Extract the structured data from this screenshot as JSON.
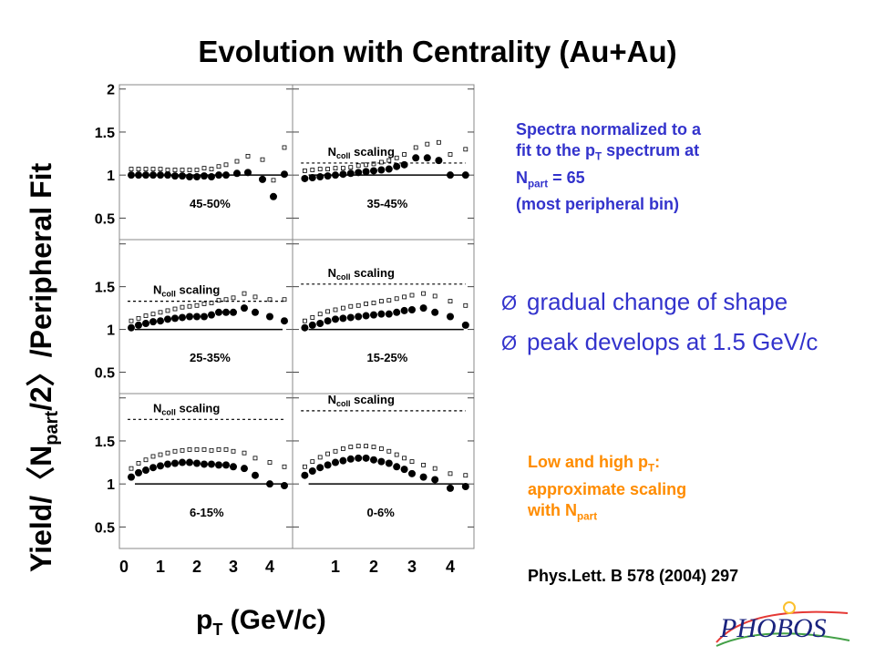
{
  "slide": {
    "title": "Evolution with Centrality (Au+Au)",
    "note_blue": {
      "line1": "Spectra normalized to a",
      "line2_pre": "fit to the p",
      "line2_sub": "T",
      "line2_post": " spectrum at",
      "line3_pre": "N",
      "line3_sub": "part",
      "line3_post": " = 65",
      "line4": "(most peripheral bin)"
    },
    "bullets": [
      "gradual change of shape",
      "peak develops at 1.5 GeV/c"
    ],
    "bullet_mark": "Ø",
    "note_orange": {
      "line1_pre": "Low and high p",
      "line1_sub": "T",
      "line1_post": ":",
      "line2": "approximate scaling",
      "line3_pre": "with N",
      "line3_sub": "part"
    },
    "reference": "Phys.Lett. B 578 (2004) 297",
    "logo_text": "PHOBOS",
    "colors": {
      "blue_text": "#3333cc",
      "orange_text": "#ff8c00",
      "markers": "#000000",
      "logo": "#1a237e"
    }
  },
  "chart_data": {
    "type": "scatter",
    "layout": "3x2 panel grid",
    "ylabel": {
      "pre": "Yield/",
      "lbracket": "〈",
      "N": "N",
      "sub": "part",
      "post_a": "/2",
      "rbracket": "〉",
      "post_b": "/Peripheral Fit"
    },
    "xlabel": {
      "main": "p",
      "sub": "T",
      "rest": " (GeV/c)"
    },
    "xlim": [
      0,
      4.5
    ],
    "ylim": [
      0.25,
      2.05
    ],
    "left_col_yticks": [
      {
        "v": 0.5,
        "label": "0.5"
      },
      {
        "v": 1,
        "label": "1"
      },
      {
        "v": 1.5,
        "label": "1.5"
      },
      {
        "v": 2,
        "label": "2"
      }
    ],
    "mid_row_yticks": [
      {
        "v": 0.5,
        "label": "0.5"
      },
      {
        "v": 1,
        "label": "1"
      },
      {
        "v": 1.5,
        "label": "1.5"
      }
    ],
    "left_xticks": [
      {
        "v": 0,
        "label": "0"
      },
      {
        "v": 1,
        "label": "1"
      },
      {
        "v": 2,
        "label": "2"
      },
      {
        "v": 3,
        "label": "3"
      },
      {
        "v": 4,
        "label": "4"
      }
    ],
    "right_xticks": [
      {
        "v": 1,
        "label": "1"
      },
      {
        "v": 2,
        "label": "2"
      },
      {
        "v": 3,
        "label": "3"
      },
      {
        "v": 4,
        "label": "4"
      }
    ],
    "ncoll_label": {
      "N": "N",
      "sub": "coll",
      "rest": " scaling"
    },
    "panels": [
      {
        "label": "45-50%",
        "ncoll": null,
        "series": [
          {
            "x": 0.2,
            "y": 1.0
          },
          {
            "x": 0.4,
            "y": 1.0
          },
          {
            "x": 0.6,
            "y": 1.0
          },
          {
            "x": 0.8,
            "y": 1.0
          },
          {
            "x": 1.0,
            "y": 1.0
          },
          {
            "x": 1.2,
            "y": 1.0
          },
          {
            "x": 1.4,
            "y": 0.99
          },
          {
            "x": 1.6,
            "y": 0.99
          },
          {
            "x": 1.8,
            "y": 0.98
          },
          {
            "x": 2.0,
            "y": 0.98
          },
          {
            "x": 2.2,
            "y": 0.99
          },
          {
            "x": 2.4,
            "y": 0.98
          },
          {
            "x": 2.6,
            "y": 1.0
          },
          {
            "x": 2.8,
            "y": 1.0
          },
          {
            "x": 3.1,
            "y": 1.02
          },
          {
            "x": 3.4,
            "y": 1.03
          },
          {
            "x": 3.8,
            "y": 0.95
          },
          {
            "x": 4.1,
            "y": 0.75
          },
          {
            "x": 4.4,
            "y": 1.01
          }
        ],
        "open": [
          {
            "x": 0.2,
            "y": 1.07
          },
          {
            "x": 0.4,
            "y": 1.07
          },
          {
            "x": 0.6,
            "y": 1.07
          },
          {
            "x": 0.8,
            "y": 1.07
          },
          {
            "x": 1.0,
            "y": 1.07
          },
          {
            "x": 1.2,
            "y": 1.06
          },
          {
            "x": 1.4,
            "y": 1.06
          },
          {
            "x": 1.6,
            "y": 1.06
          },
          {
            "x": 1.8,
            "y": 1.06
          },
          {
            "x": 2.0,
            "y": 1.06
          },
          {
            "x": 2.2,
            "y": 1.08
          },
          {
            "x": 2.4,
            "y": 1.07
          },
          {
            "x": 2.6,
            "y": 1.1
          },
          {
            "x": 2.8,
            "y": 1.12
          },
          {
            "x": 3.1,
            "y": 1.16
          },
          {
            "x": 3.4,
            "y": 1.22
          },
          {
            "x": 3.8,
            "y": 1.18
          },
          {
            "x": 4.1,
            "y": 0.94
          },
          {
            "x": 4.4,
            "y": 1.32
          }
        ]
      },
      {
        "label": "35-45%",
        "ncoll": 1.14,
        "series": [
          {
            "x": 0.2,
            "y": 0.96
          },
          {
            "x": 0.4,
            "y": 0.97
          },
          {
            "x": 0.6,
            "y": 0.98
          },
          {
            "x": 0.8,
            "y": 0.99
          },
          {
            "x": 1.0,
            "y": 1.0
          },
          {
            "x": 1.2,
            "y": 1.01
          },
          {
            "x": 1.4,
            "y": 1.02
          },
          {
            "x": 1.6,
            "y": 1.03
          },
          {
            "x": 1.8,
            "y": 1.04
          },
          {
            "x": 2.0,
            "y": 1.05
          },
          {
            "x": 2.2,
            "y": 1.06
          },
          {
            "x": 2.4,
            "y": 1.07
          },
          {
            "x": 2.6,
            "y": 1.1
          },
          {
            "x": 2.8,
            "y": 1.12
          },
          {
            "x": 3.1,
            "y": 1.2
          },
          {
            "x": 3.4,
            "y": 1.2
          },
          {
            "x": 3.7,
            "y": 1.17
          },
          {
            "x": 4.0,
            "y": 1.0
          },
          {
            "x": 4.4,
            "y": 1.0
          }
        ],
        "open": [
          {
            "x": 0.2,
            "y": 1.05
          },
          {
            "x": 0.4,
            "y": 1.06
          },
          {
            "x": 0.6,
            "y": 1.07
          },
          {
            "x": 0.8,
            "y": 1.07
          },
          {
            "x": 1.0,
            "y": 1.08
          },
          {
            "x": 1.2,
            "y": 1.08
          },
          {
            "x": 1.4,
            "y": 1.09
          },
          {
            "x": 1.6,
            "y": 1.11
          },
          {
            "x": 1.8,
            "y": 1.12
          },
          {
            "x": 2.0,
            "y": 1.13
          },
          {
            "x": 2.2,
            "y": 1.15
          },
          {
            "x": 2.4,
            "y": 1.17
          },
          {
            "x": 2.6,
            "y": 1.2
          },
          {
            "x": 2.8,
            "y": 1.24
          },
          {
            "x": 3.1,
            "y": 1.32
          },
          {
            "x": 3.4,
            "y": 1.36
          },
          {
            "x": 3.7,
            "y": 1.38
          },
          {
            "x": 4.0,
            "y": 1.24
          },
          {
            "x": 4.4,
            "y": 1.3
          }
        ]
      },
      {
        "label": "25-35%",
        "ncoll": 1.33,
        "series": [
          {
            "x": 0.2,
            "y": 1.02
          },
          {
            "x": 0.4,
            "y": 1.05
          },
          {
            "x": 0.6,
            "y": 1.07
          },
          {
            "x": 0.8,
            "y": 1.09
          },
          {
            "x": 1.0,
            "y": 1.1
          },
          {
            "x": 1.2,
            "y": 1.12
          },
          {
            "x": 1.4,
            "y": 1.13
          },
          {
            "x": 1.6,
            "y": 1.14
          },
          {
            "x": 1.8,
            "y": 1.15
          },
          {
            "x": 2.0,
            "y": 1.15
          },
          {
            "x": 2.2,
            "y": 1.15
          },
          {
            "x": 2.4,
            "y": 1.17
          },
          {
            "x": 2.6,
            "y": 1.2
          },
          {
            "x": 2.8,
            "y": 1.2
          },
          {
            "x": 3.0,
            "y": 1.2
          },
          {
            "x": 3.3,
            "y": 1.25
          },
          {
            "x": 3.6,
            "y": 1.2
          },
          {
            "x": 4.0,
            "y": 1.15
          },
          {
            "x": 4.4,
            "y": 1.1
          }
        ],
        "open": [
          {
            "x": 0.2,
            "y": 1.1
          },
          {
            "x": 0.4,
            "y": 1.13
          },
          {
            "x": 0.6,
            "y": 1.16
          },
          {
            "x": 0.8,
            "y": 1.18
          },
          {
            "x": 1.0,
            "y": 1.2
          },
          {
            "x": 1.2,
            "y": 1.22
          },
          {
            "x": 1.4,
            "y": 1.24
          },
          {
            "x": 1.6,
            "y": 1.26
          },
          {
            "x": 1.8,
            "y": 1.27
          },
          {
            "x": 2.0,
            "y": 1.28
          },
          {
            "x": 2.2,
            "y": 1.3
          },
          {
            "x": 2.4,
            "y": 1.31
          },
          {
            "x": 2.6,
            "y": 1.34
          },
          {
            "x": 2.8,
            "y": 1.35
          },
          {
            "x": 3.0,
            "y": 1.37
          },
          {
            "x": 3.3,
            "y": 1.42
          },
          {
            "x": 3.6,
            "y": 1.38
          },
          {
            "x": 4.0,
            "y": 1.35
          },
          {
            "x": 4.4,
            "y": 1.35
          }
        ]
      },
      {
        "label": "15-25%",
        "ncoll": 1.53,
        "series": [
          {
            "x": 0.2,
            "y": 1.02
          },
          {
            "x": 0.4,
            "y": 1.05
          },
          {
            "x": 0.6,
            "y": 1.07
          },
          {
            "x": 0.8,
            "y": 1.1
          },
          {
            "x": 1.0,
            "y": 1.12
          },
          {
            "x": 1.2,
            "y": 1.13
          },
          {
            "x": 1.4,
            "y": 1.14
          },
          {
            "x": 1.6,
            "y": 1.15
          },
          {
            "x": 1.8,
            "y": 1.16
          },
          {
            "x": 2.0,
            "y": 1.17
          },
          {
            "x": 2.2,
            "y": 1.18
          },
          {
            "x": 2.4,
            "y": 1.18
          },
          {
            "x": 2.6,
            "y": 1.2
          },
          {
            "x": 2.8,
            "y": 1.22
          },
          {
            "x": 3.0,
            "y": 1.23
          },
          {
            "x": 3.3,
            "y": 1.25
          },
          {
            "x": 3.6,
            "y": 1.2
          },
          {
            "x": 4.0,
            "y": 1.15
          },
          {
            "x": 4.4,
            "y": 1.05
          }
        ],
        "open": [
          {
            "x": 0.2,
            "y": 1.1
          },
          {
            "x": 0.4,
            "y": 1.14
          },
          {
            "x": 0.6,
            "y": 1.18
          },
          {
            "x": 0.8,
            "y": 1.21
          },
          {
            "x": 1.0,
            "y": 1.23
          },
          {
            "x": 1.2,
            "y": 1.25
          },
          {
            "x": 1.4,
            "y": 1.27
          },
          {
            "x": 1.6,
            "y": 1.28
          },
          {
            "x": 1.8,
            "y": 1.3
          },
          {
            "x": 2.0,
            "y": 1.31
          },
          {
            "x": 2.2,
            "y": 1.33
          },
          {
            "x": 2.4,
            "y": 1.34
          },
          {
            "x": 2.6,
            "y": 1.36
          },
          {
            "x": 2.8,
            "y": 1.38
          },
          {
            "x": 3.0,
            "y": 1.4
          },
          {
            "x": 3.3,
            "y": 1.42
          },
          {
            "x": 3.6,
            "y": 1.39
          },
          {
            "x": 4.0,
            "y": 1.33
          },
          {
            "x": 4.4,
            "y": 1.28
          }
        ]
      },
      {
        "label": "6-15%",
        "ncoll": 1.75,
        "series": [
          {
            "x": 0.2,
            "y": 1.08
          },
          {
            "x": 0.4,
            "y": 1.13
          },
          {
            "x": 0.6,
            "y": 1.16
          },
          {
            "x": 0.8,
            "y": 1.19
          },
          {
            "x": 1.0,
            "y": 1.21
          },
          {
            "x": 1.2,
            "y": 1.23
          },
          {
            "x": 1.4,
            "y": 1.24
          },
          {
            "x": 1.6,
            "y": 1.25
          },
          {
            "x": 1.8,
            "y": 1.25
          },
          {
            "x": 2.0,
            "y": 1.24
          },
          {
            "x": 2.2,
            "y": 1.23
          },
          {
            "x": 2.4,
            "y": 1.23
          },
          {
            "x": 2.6,
            "y": 1.22
          },
          {
            "x": 2.8,
            "y": 1.22
          },
          {
            "x": 3.0,
            "y": 1.2
          },
          {
            "x": 3.3,
            "y": 1.18
          },
          {
            "x": 3.6,
            "y": 1.1
          },
          {
            "x": 4.0,
            "y": 1.0
          },
          {
            "x": 4.4,
            "y": 0.98
          }
        ],
        "open": [
          {
            "x": 0.2,
            "y": 1.18
          },
          {
            "x": 0.4,
            "y": 1.24
          },
          {
            "x": 0.6,
            "y": 1.28
          },
          {
            "x": 0.8,
            "y": 1.32
          },
          {
            "x": 1.0,
            "y": 1.34
          },
          {
            "x": 1.2,
            "y": 1.36
          },
          {
            "x": 1.4,
            "y": 1.38
          },
          {
            "x": 1.6,
            "y": 1.39
          },
          {
            "x": 1.8,
            "y": 1.4
          },
          {
            "x": 2.0,
            "y": 1.4
          },
          {
            "x": 2.2,
            "y": 1.4
          },
          {
            "x": 2.4,
            "y": 1.39
          },
          {
            "x": 2.6,
            "y": 1.4
          },
          {
            "x": 2.8,
            "y": 1.4
          },
          {
            "x": 3.0,
            "y": 1.38
          },
          {
            "x": 3.3,
            "y": 1.36
          },
          {
            "x": 3.6,
            "y": 1.3
          },
          {
            "x": 4.0,
            "y": 1.25
          },
          {
            "x": 4.4,
            "y": 1.2
          }
        ]
      },
      {
        "label": "0-6%",
        "ncoll": 1.85,
        "series": [
          {
            "x": 0.2,
            "y": 1.1
          },
          {
            "x": 0.4,
            "y": 1.15
          },
          {
            "x": 0.6,
            "y": 1.19
          },
          {
            "x": 0.8,
            "y": 1.22
          },
          {
            "x": 1.0,
            "y": 1.25
          },
          {
            "x": 1.2,
            "y": 1.27
          },
          {
            "x": 1.4,
            "y": 1.29
          },
          {
            "x": 1.6,
            "y": 1.3
          },
          {
            "x": 1.8,
            "y": 1.3
          },
          {
            "x": 2.0,
            "y": 1.28
          },
          {
            "x": 2.2,
            "y": 1.26
          },
          {
            "x": 2.4,
            "y": 1.24
          },
          {
            "x": 2.6,
            "y": 1.2
          },
          {
            "x": 2.8,
            "y": 1.17
          },
          {
            "x": 3.0,
            "y": 1.12
          },
          {
            "x": 3.3,
            "y": 1.08
          },
          {
            "x": 3.6,
            "y": 1.05
          },
          {
            "x": 4.0,
            "y": 0.95
          },
          {
            "x": 4.4,
            "y": 0.97
          }
        ],
        "open": [
          {
            "x": 0.2,
            "y": 1.2
          },
          {
            "x": 0.4,
            "y": 1.26
          },
          {
            "x": 0.6,
            "y": 1.31
          },
          {
            "x": 0.8,
            "y": 1.35
          },
          {
            "x": 1.0,
            "y": 1.38
          },
          {
            "x": 1.2,
            "y": 1.41
          },
          {
            "x": 1.4,
            "y": 1.43
          },
          {
            "x": 1.6,
            "y": 1.44
          },
          {
            "x": 1.8,
            "y": 1.44
          },
          {
            "x": 2.0,
            "y": 1.43
          },
          {
            "x": 2.2,
            "y": 1.41
          },
          {
            "x": 2.4,
            "y": 1.38
          },
          {
            "x": 2.6,
            "y": 1.34
          },
          {
            "x": 2.8,
            "y": 1.3
          },
          {
            "x": 3.0,
            "y": 1.26
          },
          {
            "x": 3.3,
            "y": 1.22
          },
          {
            "x": 3.6,
            "y": 1.18
          },
          {
            "x": 4.0,
            "y": 1.12
          },
          {
            "x": 4.4,
            "y": 1.1
          }
        ]
      }
    ]
  }
}
